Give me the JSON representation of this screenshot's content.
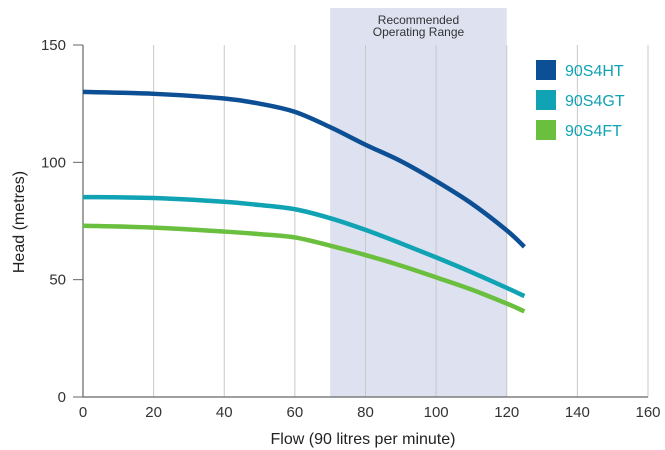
{
  "chart_data": {
    "type": "line",
    "title": "",
    "xlabel": "Flow (90 litres per minute)",
    "ylabel": "Head (metres)",
    "xlim": [
      0,
      160
    ],
    "ylim": [
      0,
      150
    ],
    "x_ticks": [
      0,
      20,
      40,
      60,
      80,
      100,
      120,
      140,
      160
    ],
    "y_ticks": [
      0,
      50,
      100,
      150
    ],
    "grid": "vertical",
    "legend_position": "top-right",
    "shaded_region": {
      "label_line1": "Recommended",
      "label_line2": "Operating Range",
      "x_start": 70,
      "x_end": 120,
      "color": "#dde1f0"
    },
    "series": [
      {
        "name": "90S4HT",
        "color": "#0d4f94",
        "points": [
          [
            0,
            130
          ],
          [
            20,
            129.2
          ],
          [
            40,
            127.2
          ],
          [
            50,
            125
          ],
          [
            60,
            121.5
          ],
          [
            70,
            115
          ],
          [
            80,
            107.5
          ],
          [
            90,
            100.5
          ],
          [
            100,
            92
          ],
          [
            110,
            82.5
          ],
          [
            120,
            71
          ],
          [
            125,
            64
          ]
        ]
      },
      {
        "name": "90S4GT",
        "color": "#10a3b3",
        "points": [
          [
            0,
            85.2
          ],
          [
            20,
            84.8
          ],
          [
            40,
            83.2
          ],
          [
            50,
            81.8
          ],
          [
            60,
            80
          ],
          [
            70,
            76.2
          ],
          [
            80,
            71.2
          ],
          [
            90,
            65.5
          ],
          [
            100,
            59.5
          ],
          [
            110,
            53.2
          ],
          [
            120,
            46.5
          ],
          [
            125,
            43
          ]
        ]
      },
      {
        "name": "90S4FT",
        "color": "#6abf3f",
        "points": [
          [
            0,
            73
          ],
          [
            20,
            72.2
          ],
          [
            40,
            70.5
          ],
          [
            50,
            69.4
          ],
          [
            60,
            68
          ],
          [
            70,
            64.5
          ],
          [
            80,
            60.5
          ],
          [
            90,
            56
          ],
          [
            100,
            51
          ],
          [
            110,
            45.8
          ],
          [
            120,
            39.8
          ],
          [
            125,
            36.5
          ]
        ]
      }
    ]
  }
}
